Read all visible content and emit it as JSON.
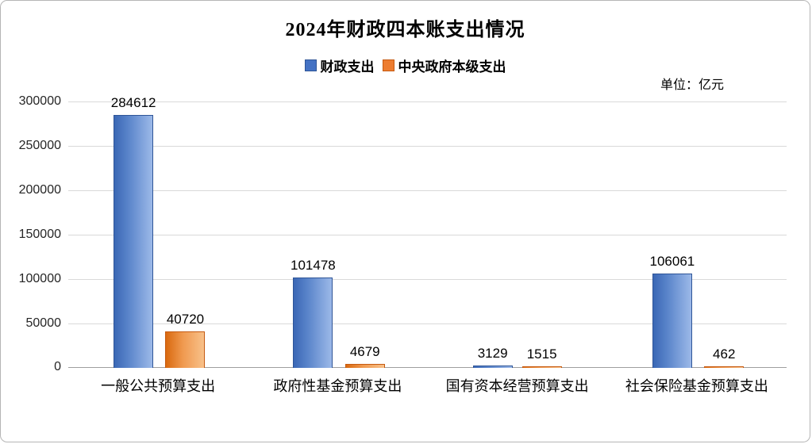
{
  "title": "2024年财政四本账支出情况",
  "unit_label": "单位：亿元",
  "colors": {
    "series_total": "#4472C4",
    "series_central": "#ED7D31",
    "gridline": "#D9D9D9",
    "axis_line": "#9F9F9F"
  },
  "chart_data": {
    "type": "bar",
    "title": "2024年财政四本账支出情况",
    "categories": [
      "一般公共预算支出",
      "政府性基金预算支出",
      "国有资本经营预算支出",
      "社会保险基金预算支出"
    ],
    "series": [
      {
        "name": "财政支出",
        "color": "#4472C4",
        "values": [
          284612,
          101478,
          3129,
          106061
        ]
      },
      {
        "name": "中央政府本级支出",
        "color": "#ED7D31",
        "values": [
          40720,
          4679,
          1515,
          462
        ]
      }
    ],
    "xlabel": "",
    "ylabel": "",
    "unit": "亿元",
    "ylim": [
      0,
      300000
    ],
    "ytick_step": 50000,
    "yticks": [
      0,
      50000,
      100000,
      150000,
      200000,
      250000,
      300000
    ],
    "grid": true,
    "legend_position": "top",
    "data_labels": true
  }
}
